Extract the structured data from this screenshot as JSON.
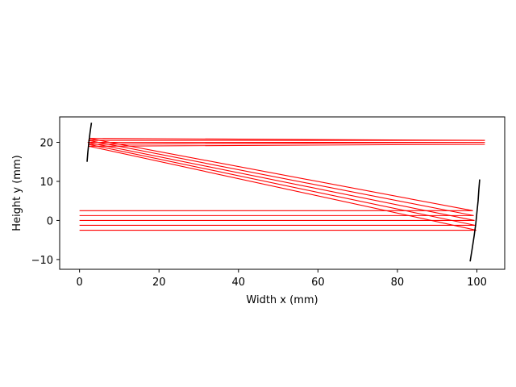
{
  "chart_data": {
    "type": "line",
    "title": "",
    "xlabel": "Width x (mm)",
    "ylabel": "Height y (mm)",
    "xlim": [
      -5,
      107
    ],
    "ylim": [
      -12.5,
      26.5
    ],
    "xticks": [
      0,
      20,
      40,
      60,
      80,
      100
    ],
    "xtick_labels": [
      "0",
      "20",
      "40",
      "60",
      "80",
      "100"
    ],
    "yticks": [
      -10,
      0,
      10,
      20
    ],
    "ytick_labels": [
      "−10",
      "0",
      "10",
      "20"
    ],
    "grid": false,
    "colors": {
      "rays": "#ff0000",
      "mirrors": "#000000"
    },
    "series": [
      {
        "kind": "ray",
        "x": [
          0,
          99.85,
          2.35,
          102
        ],
        "y": [
          -2.5,
          -2.5,
          19.0,
          19.5
        ]
      },
      {
        "kind": "ray",
        "x": [
          0,
          99.6,
          2.2,
          102
        ],
        "y": [
          -1.25,
          -1.25,
          19.5,
          20.0
        ]
      },
      {
        "kind": "ray",
        "x": [
          0,
          99.4,
          2.05,
          102
        ],
        "y": [
          0.0,
          0.0,
          20.0,
          20.0
        ]
      },
      {
        "kind": "ray",
        "x": [
          0,
          99.2,
          2.2,
          102
        ],
        "y": [
          1.25,
          1.25,
          20.5,
          20.5
        ]
      },
      {
        "kind": "ray",
        "x": [
          0,
          99.0,
          2.35,
          102
        ],
        "y": [
          2.5,
          2.5,
          21.0,
          20.5
        ]
      },
      {
        "kind": "mirror",
        "x": [
          1.9,
          2.1,
          2.35,
          2.65,
          3.0
        ],
        "y": [
          15,
          17.5,
          20,
          22.5,
          25
        ]
      },
      {
        "kind": "mirror",
        "x": [
          98.3,
          98.85,
          99.3,
          99.7,
          100.0,
          100.3,
          100.5,
          100.7
        ],
        "y": [
          -10.5,
          -7,
          -4,
          -1,
          2,
          5,
          8,
          10.5
        ]
      }
    ]
  }
}
